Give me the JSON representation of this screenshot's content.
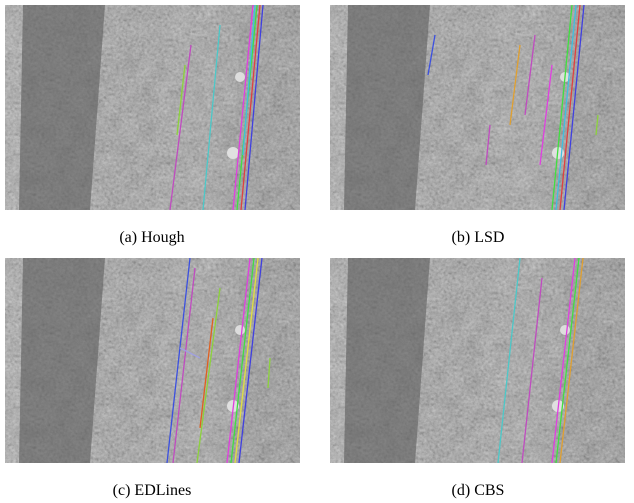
{
  "panels": [
    {
      "caption": "(a) Hough"
    },
    {
      "caption": "(b) LSD"
    },
    {
      "caption": "(c) EDLines"
    },
    {
      "caption": "(d) CBS"
    }
  ]
}
